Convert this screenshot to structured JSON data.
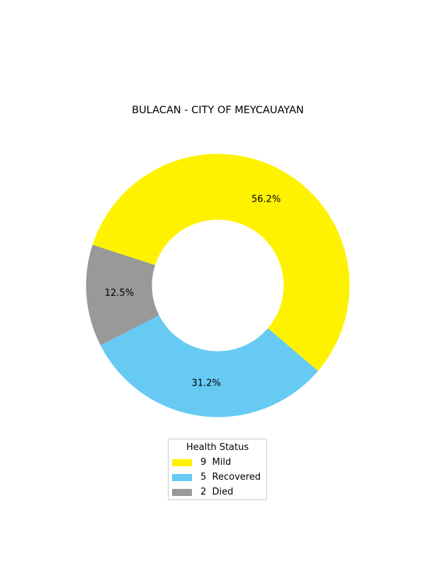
{
  "chart_data": {
    "type": "pie",
    "title": "BULACAN - CITY OF MEYCAUAYAN",
    "donut": true,
    "slices": [
      {
        "label": "Mild",
        "value": 9,
        "pct_label": "56.2%",
        "color": "#FFF200"
      },
      {
        "label": "Recovered",
        "value": 5,
        "pct_label": "31.2%",
        "color": "#66CAF3"
      },
      {
        "label": "Died",
        "value": 2,
        "pct_label": "12.5%",
        "color": "#999999"
      }
    ],
    "legend": {
      "title": "Health Status",
      "placement": "bottom-center",
      "entries": [
        "9  Mild",
        "5  Recovered",
        "2  Died"
      ]
    }
  }
}
